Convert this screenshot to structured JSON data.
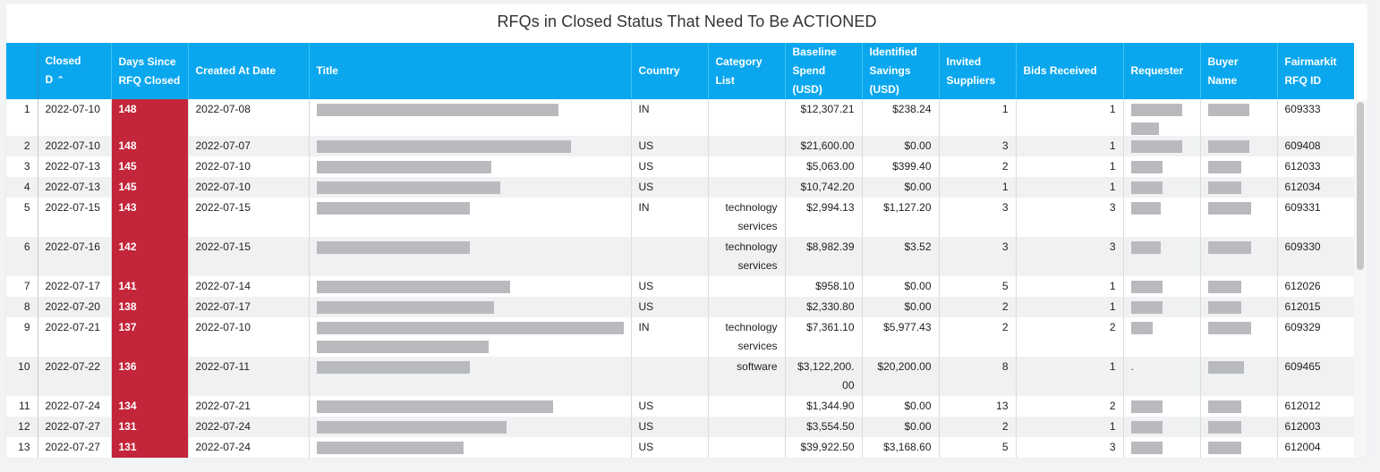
{
  "title": "RFQs in Closed Status That Need To Be ACTIONED",
  "colors": {
    "header_bg": "#0aa7ee",
    "days_bg": "#c3253a",
    "redacted": "#b9babd"
  },
  "columns": [
    {
      "key": "idx",
      "label": ""
    },
    {
      "key": "closed",
      "label": "Closed D"
    },
    {
      "key": "days",
      "label": "Days Since RFQ Closed"
    },
    {
      "key": "created",
      "label": "Created At Date"
    },
    {
      "key": "title",
      "label": "Title"
    },
    {
      "key": "country",
      "label": "Country"
    },
    {
      "key": "category",
      "label": "Category List"
    },
    {
      "key": "baseline",
      "label": "Baseline Spend (USD)"
    },
    {
      "key": "savings",
      "label": "Identified Savings (USD)"
    },
    {
      "key": "invited",
      "label": "Invited Suppliers"
    },
    {
      "key": "bids",
      "label": "Bids Received"
    },
    {
      "key": "requester",
      "label": "Requester"
    },
    {
      "key": "buyer",
      "label": "Buyer Name"
    },
    {
      "key": "fm_id",
      "label": "Fairmarkit RFQ ID"
    }
  ],
  "sort": {
    "column": "closed",
    "direction": "asc",
    "icon": "sort-asc-icon"
  },
  "rows": [
    {
      "idx": "1",
      "closed": "2022-07-10",
      "days": "148",
      "created": "2022-07-08",
      "country": "IN",
      "category": "",
      "baseline": "$12,307.21",
      "savings": "$238.24",
      "invited": "1",
      "bids": "1",
      "requester": "",
      "fm_id": "609333",
      "redacted": {
        "title": [
          0.79
        ],
        "requester": [
          0.83,
          0.45
        ],
        "buyer": [
          0.68
        ]
      }
    },
    {
      "idx": "2",
      "closed": "2022-07-10",
      "days": "148",
      "created": "2022-07-07",
      "country": "US",
      "category": "",
      "baseline": "$21,600.00",
      "savings": "$0.00",
      "invited": "3",
      "bids": "1",
      "requester": "",
      "fm_id": "609408",
      "redacted": {
        "title": [
          0.83
        ],
        "requester": [
          0.83
        ],
        "buyer": [
          0.68
        ]
      }
    },
    {
      "idx": "3",
      "closed": "2022-07-13",
      "days": "145",
      "created": "2022-07-10",
      "country": "US",
      "category": "",
      "baseline": "$5,063.00",
      "savings": "$399.40",
      "invited": "2",
      "bids": "1",
      "requester": "",
      "fm_id": "612033",
      "redacted": {
        "title": [
          0.57
        ],
        "requester": [
          0.52
        ],
        "buyer": [
          0.54
        ]
      }
    },
    {
      "idx": "4",
      "closed": "2022-07-13",
      "days": "145",
      "created": "2022-07-10",
      "country": "US",
      "category": "",
      "baseline": "$10,742.20",
      "savings": "$0.00",
      "invited": "1",
      "bids": "1",
      "requester": "",
      "fm_id": "612034",
      "redacted": {
        "title": [
          0.6
        ],
        "requester": [
          0.52
        ],
        "buyer": [
          0.54
        ]
      }
    },
    {
      "idx": "5",
      "closed": "2022-07-15",
      "days": "143",
      "created": "2022-07-15",
      "country": "IN",
      "category": "technology services",
      "baseline": "$2,994.13",
      "savings": "$1,127.20",
      "invited": "3",
      "bids": "3",
      "requester": "",
      "fm_id": "609331",
      "redacted": {
        "title": [
          0.5
        ],
        "requester": [
          0.49
        ],
        "buyer": [
          0.7
        ]
      }
    },
    {
      "idx": "6",
      "closed": "2022-07-16",
      "days": "142",
      "created": "2022-07-15",
      "country": "",
      "category": "technology services",
      "baseline": "$8,982.39",
      "savings": "$3.52",
      "invited": "3",
      "bids": "3",
      "requester": "",
      "fm_id": "609330",
      "redacted": {
        "title": [
          0.5
        ],
        "requester": [
          0.49
        ],
        "buyer": [
          0.7
        ]
      }
    },
    {
      "idx": "7",
      "closed": "2022-07-17",
      "days": "141",
      "created": "2022-07-14",
      "country": "US",
      "category": "",
      "baseline": "$958.10",
      "savings": "$0.00",
      "invited": "5",
      "bids": "1",
      "requester": "",
      "fm_id": "612026",
      "redacted": {
        "title": [
          0.63
        ],
        "requester": [
          0.52
        ],
        "buyer": [
          0.54
        ]
      }
    },
    {
      "idx": "8",
      "closed": "2022-07-20",
      "days": "138",
      "created": "2022-07-17",
      "country": "US",
      "category": "",
      "baseline": "$2,330.80",
      "savings": "$0.00",
      "invited": "2",
      "bids": "1",
      "requester": "",
      "fm_id": "612015",
      "redacted": {
        "title": [
          0.58
        ],
        "requester": [
          0.52
        ],
        "buyer": [
          0.54
        ]
      }
    },
    {
      "idx": "9",
      "closed": "2022-07-21",
      "days": "137",
      "created": "2022-07-10",
      "country": "IN",
      "category": "technology services",
      "baseline": "$7,361.10",
      "savings": "$5,977.43",
      "invited": "2",
      "bids": "2",
      "requester": "",
      "fm_id": "609329",
      "redacted": {
        "title": [
          1.0,
          0.56
        ],
        "requester": [
          0.35
        ],
        "buyer": [
          0.7
        ]
      }
    },
    {
      "idx": "10",
      "closed": "2022-07-22",
      "days": "136",
      "created": "2022-07-11",
      "country": "",
      "category": "software",
      "baseline": "$3,122,200.00",
      "savings": "$20,200.00",
      "invited": "8",
      "bids": "1",
      "requester": ".",
      "fm_id": "609465",
      "redacted": {
        "title": [
          0.5
        ],
        "requester": [],
        "buyer": [
          0.59
        ]
      }
    },
    {
      "idx": "11",
      "closed": "2022-07-24",
      "days": "134",
      "created": "2022-07-21",
      "country": "US",
      "category": "",
      "baseline": "$1,344.90",
      "savings": "$0.00",
      "invited": "13",
      "bids": "2",
      "requester": "",
      "fm_id": "612012",
      "redacted": {
        "title": [
          0.77
        ],
        "requester": [
          0.52
        ],
        "buyer": [
          0.54
        ]
      }
    },
    {
      "idx": "12",
      "closed": "2022-07-27",
      "days": "131",
      "created": "2022-07-24",
      "country": "US",
      "category": "",
      "baseline": "$3,554.50",
      "savings": "$0.00",
      "invited": "2",
      "bids": "1",
      "requester": "",
      "fm_id": "612003",
      "redacted": {
        "title": [
          0.62
        ],
        "requester": [
          0.52
        ],
        "buyer": [
          0.54
        ]
      }
    },
    {
      "idx": "13",
      "closed": "2022-07-27",
      "days": "131",
      "created": "2022-07-24",
      "country": "US",
      "category": "",
      "baseline": "$39,922.50",
      "savings": "$3,168.60",
      "invited": "5",
      "bids": "3",
      "requester": "",
      "fm_id": "612004",
      "redacted": {
        "title": [
          0.48
        ],
        "requester": [
          0.52
        ],
        "buyer": [
          0.54
        ]
      }
    }
  ]
}
